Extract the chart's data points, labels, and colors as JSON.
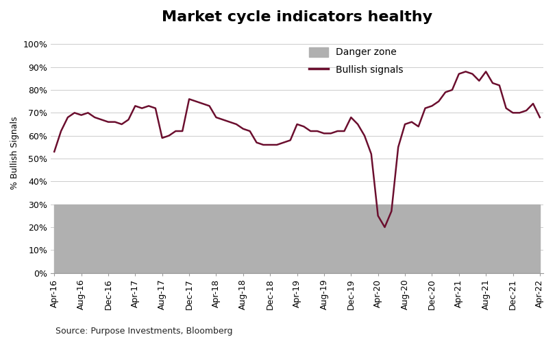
{
  "title": "Market cycle indicators healthy",
  "ylabel": "% Bullish Signals",
  "source": "Source: Purpose Investments, Bloomberg",
  "line_color": "#6B0E2E",
  "danger_zone_color": "#B0B0B0",
  "danger_zone_alpha": 1.0,
  "danger_zone_upper": 0.3,
  "ylim": [
    0.0,
    1.05
  ],
  "yticks": [
    0.0,
    0.1,
    0.2,
    0.3,
    0.4,
    0.5,
    0.6,
    0.7,
    0.8,
    0.9,
    1.0
  ],
  "background_color": "#FFFFFF",
  "grid_color": "#CCCCCC",
  "x_labels": [
    "Apr-16",
    "Aug-16",
    "Dec-16",
    "Apr-17",
    "Aug-17",
    "Dec-17",
    "Apr-18",
    "Aug-18",
    "Dec-18",
    "Apr-19",
    "Aug-19",
    "Dec-19",
    "Apr-20",
    "Aug-20",
    "Dec-20",
    "Apr-21",
    "Aug-21",
    "Dec-21",
    "Apr-22"
  ],
  "values": [
    0.53,
    0.62,
    0.68,
    0.7,
    0.69,
    0.7,
    0.68,
    0.67,
    0.66,
    0.66,
    0.65,
    0.67,
    0.73,
    0.72,
    0.73,
    0.72,
    0.59,
    0.6,
    0.62,
    0.62,
    0.76,
    0.75,
    0.74,
    0.73,
    0.68,
    0.67,
    0.66,
    0.65,
    0.63,
    0.62,
    0.57,
    0.56,
    0.56,
    0.56,
    0.57,
    0.58,
    0.65,
    0.64,
    0.62,
    0.62,
    0.61,
    0.61,
    0.62,
    0.62,
    0.68,
    0.65,
    0.6,
    0.52,
    0.25,
    0.2,
    0.27,
    0.55,
    0.65,
    0.66,
    0.64,
    0.72,
    0.73,
    0.75,
    0.79,
    0.8,
    0.87,
    0.88,
    0.87,
    0.84,
    0.88,
    0.83,
    0.82,
    0.72,
    0.7,
    0.7,
    0.71,
    0.74,
    0.68
  ],
  "x_tick_positions": [
    0,
    4,
    8,
    12,
    16,
    20,
    24,
    28,
    32,
    36,
    40,
    44,
    48,
    52,
    56,
    60,
    64,
    68,
    72
  ],
  "title_fontsize": 16,
  "ylabel_fontsize": 9,
  "tick_fontsize": 9,
  "source_fontsize": 9,
  "legend_fontsize": 10,
  "line_width": 1.8
}
